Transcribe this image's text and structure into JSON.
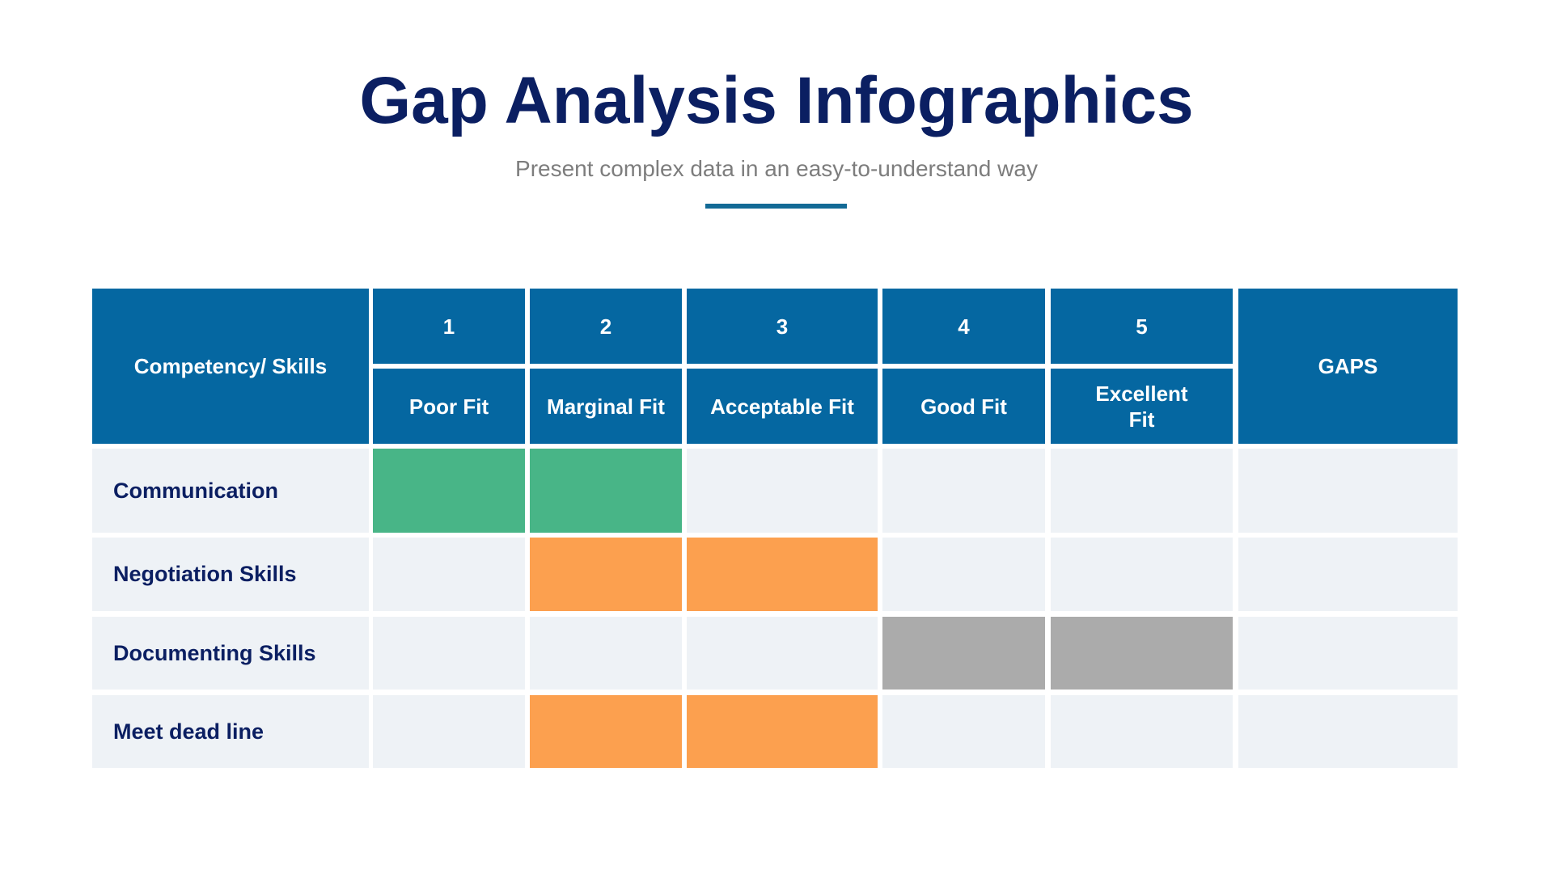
{
  "header": {
    "title": "Gap Analysis Infographics",
    "subtitle": "Present complex data in an easy-to-understand way",
    "accent_color": "#136a96"
  },
  "table": {
    "corner_label": "Competency/ Skills",
    "gaps_label": "GAPS",
    "levels": [
      {
        "number": "1",
        "label": "Poor Fit"
      },
      {
        "number": "2",
        "label": "Marginal Fit"
      },
      {
        "number": "3",
        "label": "Acceptable Fit"
      },
      {
        "number": "4",
        "label": "Good Fit"
      },
      {
        "number": "5",
        "label": "Excellent Fit"
      }
    ],
    "rows": [
      {
        "skill": "Communication",
        "filled_levels": [
          1,
          2
        ],
        "color": "#48b587",
        "gaps": ""
      },
      {
        "skill": "Negotiation Skills",
        "filled_levels": [
          2,
          3
        ],
        "color": "#fca04f",
        "gaps": ""
      },
      {
        "skill": "Documenting Skills",
        "filled_levels": [
          4,
          5
        ],
        "color": "#ababab",
        "gaps": ""
      },
      {
        "skill": "Meet dead line",
        "filled_levels": [
          2,
          3
        ],
        "color": "#fca04f",
        "gaps": ""
      }
    ],
    "colors": {
      "header_bg": "#0567a1",
      "cell_bg": "#eef2f6",
      "text_dark": "#0b1f62"
    }
  }
}
